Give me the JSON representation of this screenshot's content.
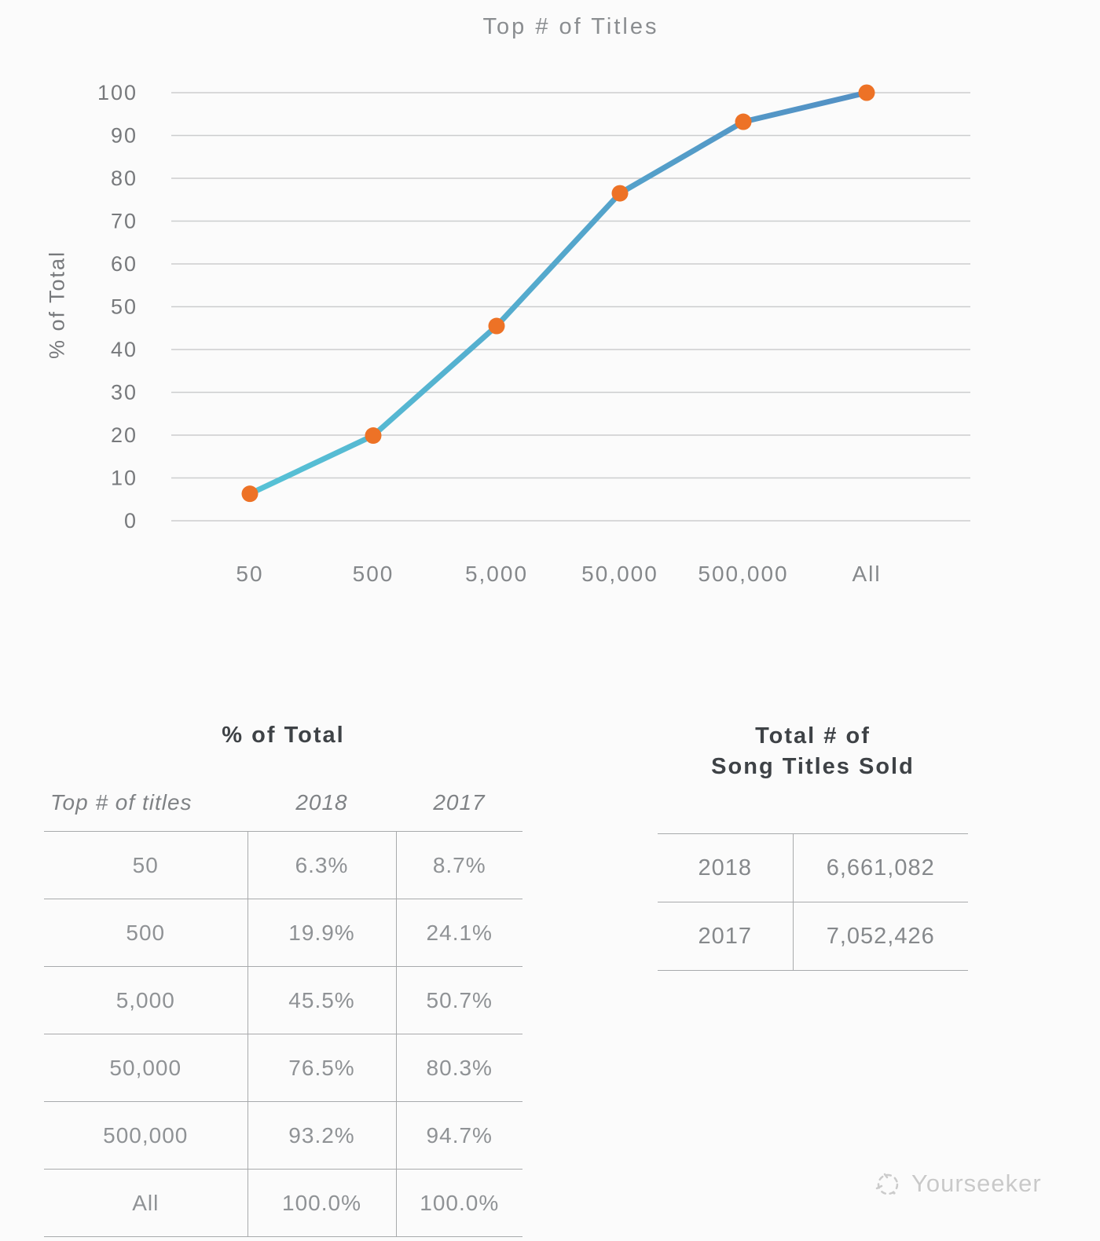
{
  "chart_data": {
    "type": "line",
    "title": "Top # of Titles",
    "xlabel": "",
    "ylabel": "% of Total",
    "categories": [
      "50",
      "500",
      "5,000",
      "50,000",
      "500,000",
      "All"
    ],
    "series_name": "2018",
    "values": [
      6.3,
      19.9,
      45.5,
      76.5,
      93.2,
      100.0
    ],
    "ylim": [
      0,
      100
    ],
    "yticks": [
      0,
      10,
      20,
      30,
      40,
      50,
      60,
      70,
      80,
      90,
      100
    ],
    "grid": true,
    "legend_position": "none",
    "line_gradient": [
      "#56c3d6",
      "#5390c4"
    ],
    "marker_color": "#ed7226",
    "grid_color": "#cccdce"
  },
  "pct_table": {
    "header": "% of Total",
    "columns": [
      "Top # of titles",
      "2018",
      "2017"
    ],
    "rows": [
      [
        "50",
        "6.3%",
        "8.7%"
      ],
      [
        "500",
        "19.9%",
        "24.1%"
      ],
      [
        "5,000",
        "45.5%",
        "50.7%"
      ],
      [
        "50,000",
        "76.5%",
        "80.3%"
      ],
      [
        "500,000",
        "93.2%",
        "94.7%"
      ],
      [
        "All",
        "100.0%",
        "100.0%"
      ]
    ]
  },
  "totals_table": {
    "header_line1": "Total # of",
    "header_line2": "Song Titles Sold",
    "rows": [
      [
        "2018",
        "6,661,082"
      ],
      [
        "2017",
        "7,052,426"
      ]
    ]
  },
  "watermark": {
    "label": "Yourseeker"
  }
}
